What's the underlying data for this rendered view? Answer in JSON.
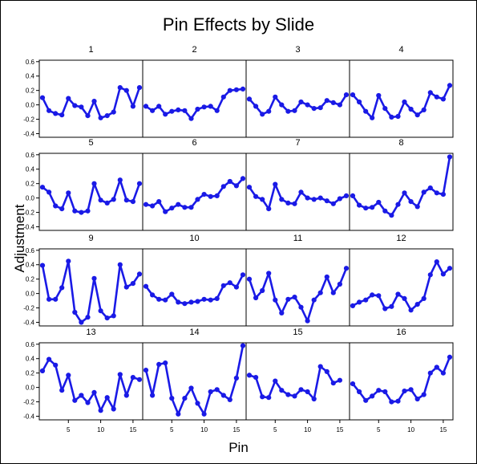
{
  "figure": {
    "title": "Pin Effects by Slide",
    "xlabel": "Pin",
    "ylabel": "Adjustment"
  },
  "colors": {
    "line": "#1a1ae6",
    "axis": "#000000",
    "background": "#ffffff"
  },
  "chart_data": {
    "type": "line",
    "layout": "4x4 small multiples, shared axes",
    "title": "Pin Effects by Slide",
    "xlabel": "Pin",
    "ylabel": "Adjustment",
    "xlim": [
      0.5,
      16.5
    ],
    "ylim": [
      -0.45,
      0.62
    ],
    "xticks": [
      5,
      10,
      15
    ],
    "yticks": [
      -0.4,
      -0.2,
      0.0,
      0.2,
      0.4,
      0.6
    ],
    "ytick_labels": [
      "-0.4",
      "-0.2",
      "0.0",
      "0.2",
      "0.4",
      "0.6"
    ],
    "grid": false,
    "x": [
      1,
      2,
      3,
      4,
      5,
      6,
      7,
      8,
      9,
      10,
      11,
      12,
      13,
      14,
      15,
      16
    ],
    "series": [
      {
        "name": "1",
        "values": [
          0.1,
          -0.08,
          -0.12,
          -0.14,
          0.09,
          -0.01,
          -0.03,
          -0.15,
          0.05,
          -0.18,
          -0.15,
          -0.1,
          0.24,
          0.2,
          -0.02,
          0.24
        ]
      },
      {
        "name": "2",
        "values": [
          -0.02,
          -0.08,
          -0.02,
          -0.13,
          -0.09,
          -0.07,
          -0.08,
          -0.19,
          -0.06,
          -0.03,
          -0.02,
          -0.08,
          0.11,
          0.2,
          0.21,
          0.22
        ]
      },
      {
        "name": "3",
        "values": [
          0.08,
          -0.02,
          -0.13,
          -0.09,
          0.11,
          0.0,
          -0.09,
          -0.08,
          0.04,
          0.0,
          -0.05,
          -0.04,
          0.06,
          0.03,
          0.0,
          0.14
        ]
      },
      {
        "name": "4",
        "values": [
          0.14,
          0.04,
          -0.09,
          -0.18,
          0.13,
          -0.05,
          -0.17,
          -0.16,
          0.04,
          -0.06,
          -0.14,
          -0.07,
          0.17,
          0.11,
          0.08,
          0.27
        ]
      },
      {
        "name": "5",
        "values": [
          0.15,
          0.08,
          -0.11,
          -0.15,
          0.07,
          -0.18,
          -0.2,
          -0.18,
          0.2,
          -0.03,
          -0.07,
          -0.02,
          0.25,
          -0.03,
          -0.05,
          0.2
        ]
      },
      {
        "name": "6",
        "values": [
          -0.09,
          -0.11,
          -0.05,
          -0.19,
          -0.14,
          -0.09,
          -0.13,
          -0.13,
          -0.02,
          0.05,
          0.02,
          0.03,
          0.16,
          0.23,
          0.17,
          0.27
        ]
      },
      {
        "name": "7",
        "values": [
          0.15,
          0.02,
          -0.02,
          -0.15,
          0.19,
          -0.02,
          -0.07,
          -0.08,
          0.08,
          0.0,
          -0.02,
          0.0,
          -0.04,
          -0.08,
          -0.01,
          0.03
        ]
      },
      {
        "name": "8",
        "values": [
          0.03,
          -0.1,
          -0.14,
          -0.13,
          -0.06,
          -0.18,
          -0.24,
          -0.09,
          0.07,
          -0.05,
          -0.12,
          0.08,
          0.14,
          0.07,
          0.05,
          0.57
        ]
      },
      {
        "name": "9",
        "values": [
          0.39,
          -0.08,
          -0.08,
          0.08,
          0.45,
          -0.26,
          -0.4,
          -0.33,
          0.21,
          -0.24,
          -0.34,
          -0.31,
          0.4,
          0.09,
          0.14,
          0.27
        ]
      },
      {
        "name": "10",
        "values": [
          0.1,
          -0.02,
          -0.08,
          -0.09,
          -0.01,
          -0.12,
          -0.14,
          -0.12,
          -0.11,
          -0.08,
          -0.09,
          -0.07,
          0.11,
          0.15,
          0.09,
          0.26
        ]
      },
      {
        "name": "11",
        "values": [
          0.2,
          -0.06,
          0.04,
          0.28,
          -0.09,
          -0.27,
          -0.08,
          -0.05,
          -0.19,
          -0.38,
          -0.09,
          0.01,
          0.23,
          0.01,
          0.13,
          0.35
        ]
      },
      {
        "name": "12",
        "values": [
          -0.17,
          -0.12,
          -0.09,
          -0.02,
          -0.03,
          -0.21,
          -0.18,
          -0.01,
          -0.07,
          -0.23,
          -0.15,
          -0.07,
          0.26,
          0.44,
          0.27,
          0.35
        ]
      },
      {
        "name": "13",
        "values": [
          0.23,
          0.39,
          0.31,
          -0.04,
          0.17,
          -0.18,
          -0.11,
          -0.21,
          -0.07,
          -0.32,
          -0.14,
          -0.3,
          0.18,
          -0.11,
          0.14,
          0.11
        ]
      },
      {
        "name": "14",
        "values": [
          0.24,
          -0.11,
          0.32,
          0.34,
          -0.15,
          -0.37,
          -0.15,
          -0.01,
          -0.22,
          -0.37,
          -0.06,
          -0.03,
          -0.11,
          -0.17,
          0.13,
          0.58
        ]
      },
      {
        "name": "15",
        "values": [
          0.17,
          0.14,
          -0.13,
          -0.14,
          0.09,
          -0.04,
          -0.1,
          -0.12,
          -0.03,
          -0.06,
          -0.16,
          0.29,
          0.22,
          0.06,
          0.1,
          null
        ]
      },
      {
        "name": "16",
        "values": [
          0.05,
          -0.06,
          -0.18,
          -0.12,
          -0.04,
          -0.06,
          -0.2,
          -0.19,
          -0.05,
          -0.03,
          -0.16,
          -0.1,
          0.2,
          0.28,
          0.2,
          0.42
        ]
      }
    ]
  }
}
